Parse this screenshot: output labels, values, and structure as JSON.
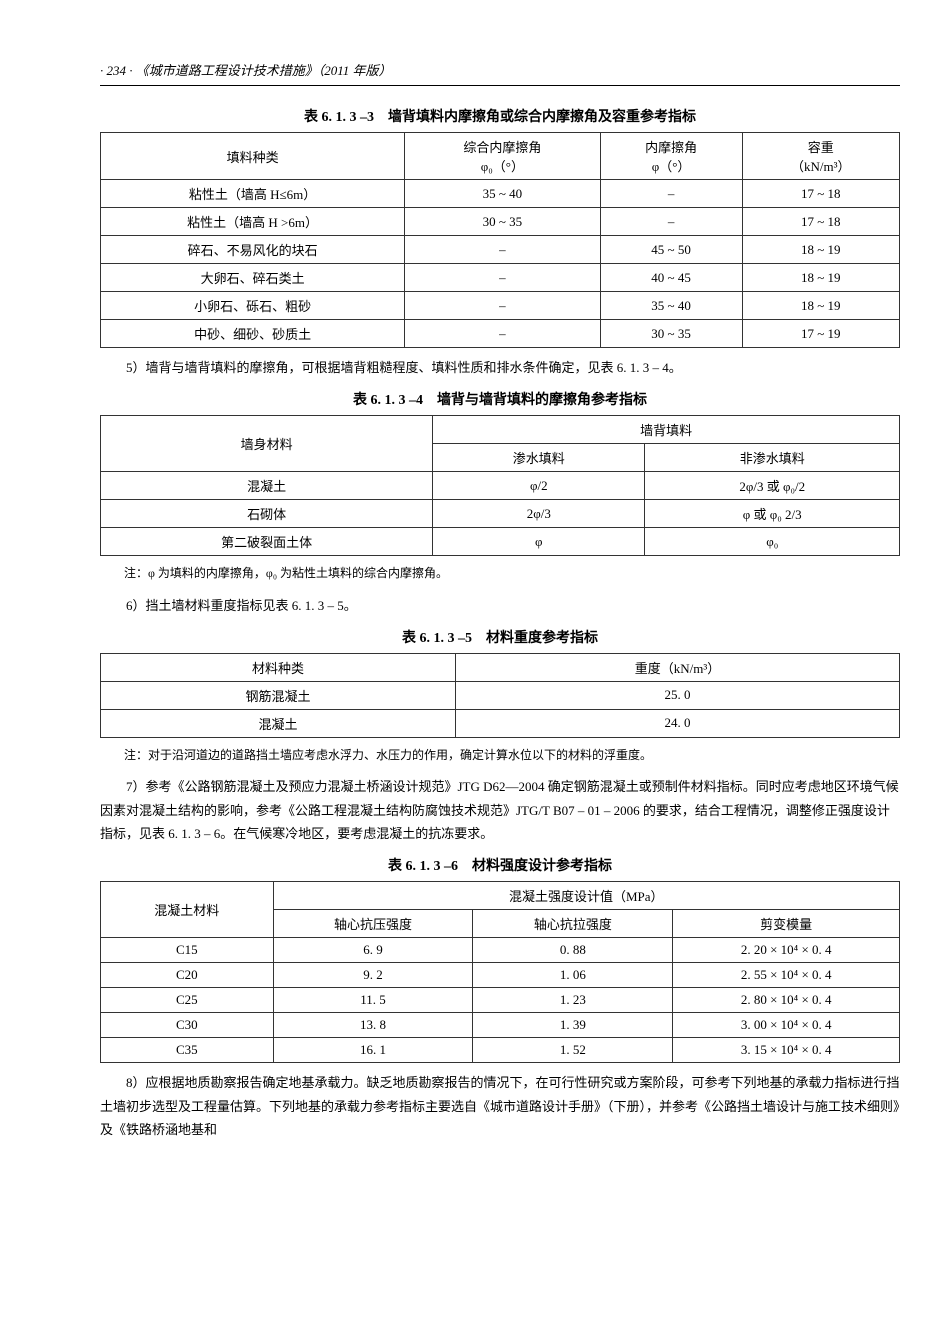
{
  "header": {
    "page_num": "· 234 ·",
    "book_title": "《城市道路工程设计技术措施》（2011 年版）"
  },
  "table_613_3": {
    "title": "表 6. 1. 3 –3　墙背填料内摩擦角或综合内摩擦角及容重参考指标",
    "headers": {
      "col1": "填料种类",
      "col2_line1": "综合内摩擦角",
      "col2_line2": "φ₀（°）",
      "col3_line1": "内摩擦角",
      "col3_line2": "φ（°）",
      "col4_line1": "容重",
      "col4_line2": "（kN/m³）"
    },
    "rows": [
      {
        "name": "粘性土（墙高 H≤6m）",
        "phi0": "35 ~ 40",
        "phi": "–",
        "weight": "17 ~ 18"
      },
      {
        "name": "粘性土（墙高 H >6m）",
        "phi0": "30 ~ 35",
        "phi": "–",
        "weight": "17 ~ 18"
      },
      {
        "name": "碎石、不易风化的块石",
        "phi0": "–",
        "phi": "45 ~ 50",
        "weight": "18 ~ 19"
      },
      {
        "name": "大卵石、碎石类土",
        "phi0": "–",
        "phi": "40 ~ 45",
        "weight": "18 ~ 19"
      },
      {
        "name": "小卵石、砾石、粗砂",
        "phi0": "–",
        "phi": "35 ~ 40",
        "weight": "18 ~ 19"
      },
      {
        "name": "中砂、细砂、砂质土",
        "phi0": "–",
        "phi": "30 ~ 35",
        "weight": "17 ~ 19"
      }
    ]
  },
  "para_5": "5）墙背与墙背填料的摩擦角，可根据墙背粗糙程度、填料性质和排水条件确定，见表 6. 1. 3 – 4。",
  "table_613_4": {
    "title": "表 6. 1. 3 –4　墙背与墙背填料的摩擦角参考指标",
    "headers": {
      "col1": "墙身材料",
      "col2_span": "墙背填料",
      "col2a": "渗水填料",
      "col2b": "非渗水填料"
    },
    "rows": [
      {
        "material": "混凝土",
        "permeable": "φ/2",
        "nonpermeable": "2φ/3 或 φ₀/2"
      },
      {
        "material": "石砌体",
        "permeable": "2φ/3",
        "nonpermeable": "φ 或 φ₀ 2/3"
      },
      {
        "material": "第二破裂面土体",
        "permeable": "φ",
        "nonpermeable": "φ₀"
      }
    ],
    "note": "注：φ 为填料的内摩擦角，φ₀ 为粘性土填料的综合内摩擦角。"
  },
  "para_6": "6）挡土墙材料重度指标见表 6. 1. 3 – 5。",
  "table_613_5": {
    "title": "表 6. 1. 3 –5　材料重度参考指标",
    "headers": {
      "col1": "材料种类",
      "col2": "重度（kN/m³）"
    },
    "rows": [
      {
        "name": "钢筋混凝土",
        "val": "25. 0"
      },
      {
        "name": "混凝土",
        "val": "24. 0"
      }
    ],
    "note": "注：对于沿河道边的道路挡土墙应考虑水浮力、水压力的作用，确定计算水位以下的材料的浮重度。"
  },
  "para_7": "7）参考《公路钢筋混凝土及预应力混凝土桥涵设计规范》JTG D62—2004 确定钢筋混凝土或预制件材料指标。同时应考虑地区环境气候因素对混凝土结构的影响，参考《公路工程混凝土结构防腐蚀技术规范》JTG/T B07 – 01 – 2006 的要求，结合工程情况，调整修正强度设计指标，见表 6. 1. 3 – 6。在气候寒冷地区，要考虑混凝土的抗冻要求。",
  "table_613_6": {
    "title": "表 6. 1. 3 –6　材料强度设计参考指标",
    "headers": {
      "col1": "混凝土材料",
      "col2_span": "混凝土强度设计值（MPa）",
      "col2a": "轴心抗压强度",
      "col2b": "轴心抗拉强度",
      "col2c": "剪变模量"
    },
    "rows": [
      {
        "grade": "C15",
        "comp": "6. 9",
        "tens": "0. 88",
        "shear": "2. 20 × 10⁴ × 0. 4"
      },
      {
        "grade": "C20",
        "comp": "9. 2",
        "tens": "1. 06",
        "shear": "2. 55 × 10⁴ × 0. 4"
      },
      {
        "grade": "C25",
        "comp": "11. 5",
        "tens": "1. 23",
        "shear": "2. 80 × 10⁴ × 0. 4"
      },
      {
        "grade": "C30",
        "comp": "13. 8",
        "tens": "1. 39",
        "shear": "3. 00 × 10⁴ × 0. 4"
      },
      {
        "grade": "C35",
        "comp": "16. 1",
        "tens": "1. 52",
        "shear": "3. 15 × 10⁴ × 0. 4"
      }
    ]
  },
  "para_8": "8）应根据地质勘察报告确定地基承载力。缺乏地质勘察报告的情况下，在可行性研究或方案阶段，可参考下列地基的承载力指标进行挡土墙初步选型及工程量估算。下列地基的承载力参考指标主要选自《城市道路设计手册》（下册），并参考《公路挡土墙设计与施工技术细则》及《铁路桥涵地基和"
}
